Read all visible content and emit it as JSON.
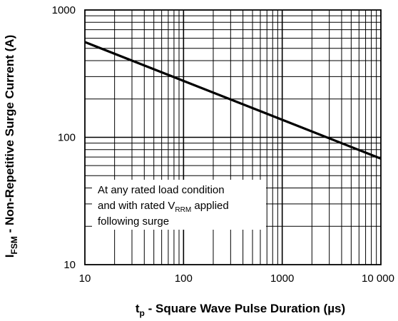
{
  "chart_data": {
    "type": "line",
    "xscale": "log",
    "yscale": "log",
    "xlim": [
      10,
      10000
    ],
    "ylim": [
      10,
      1000
    ],
    "grid": true,
    "x_ticks": [
      "10",
      "100",
      "1000",
      "10 000"
    ],
    "y_ticks": [
      "10",
      "100",
      "1000"
    ],
    "xlabel": {
      "main": "t",
      "sub": "p",
      "rest": " - Square Wave Pulse Duration (µs)"
    },
    "ylabel": {
      "main": "I",
      "sub": "FSM",
      "rest": " - Non-Repetitive Surge Current (A)"
    },
    "annotation": {
      "line1": "At any rated load condition",
      "line2_prefix": "and with rated V",
      "line2_sub": "RRM",
      "line2_suffix": " applied",
      "line3": "following surge"
    },
    "series": [
      {
        "x": [
          10,
          10000
        ],
        "y": [
          560,
          68
        ]
      }
    ],
    "line_color": "#000000"
  }
}
